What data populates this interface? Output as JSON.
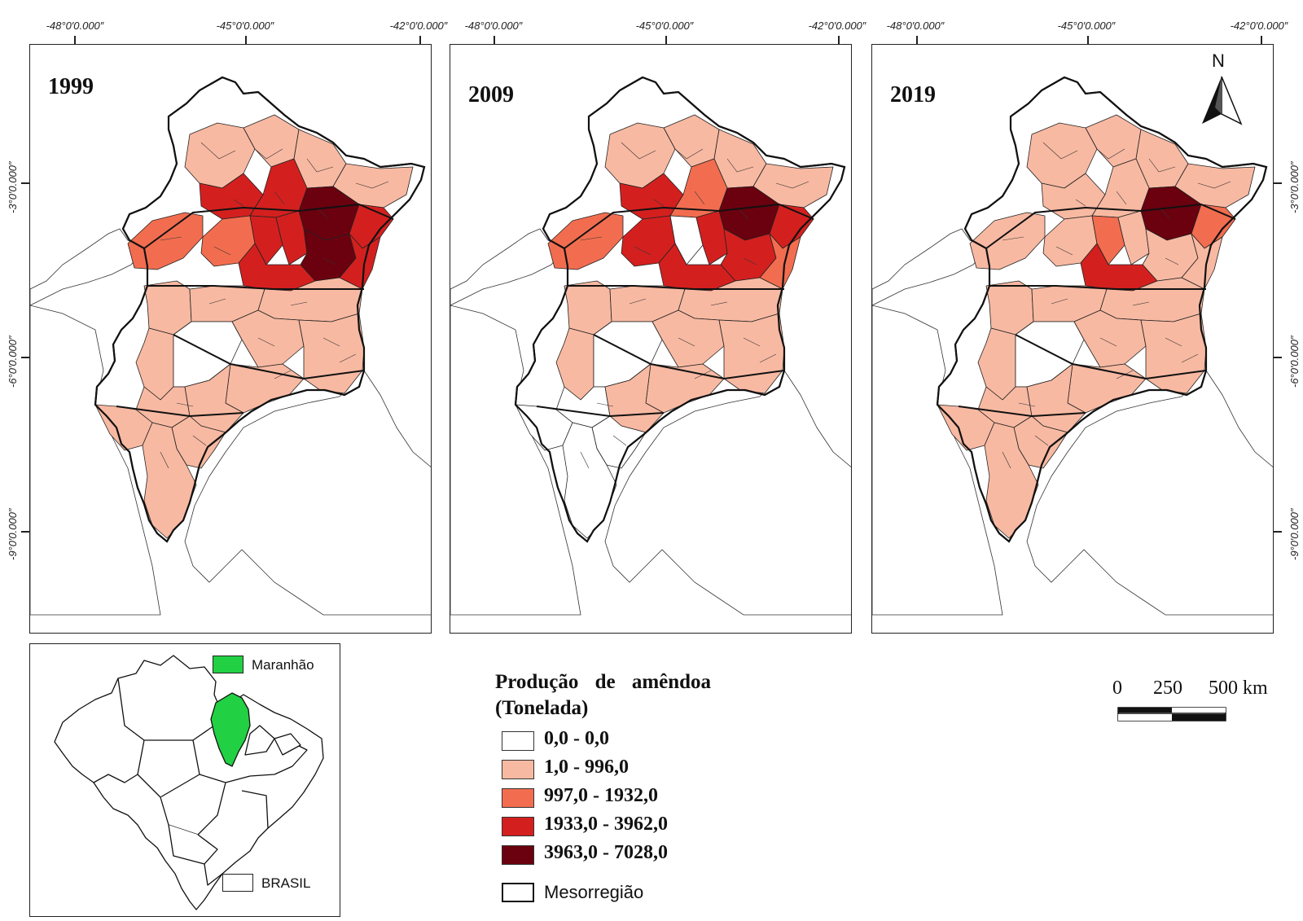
{
  "panels": [
    {
      "year": "1999"
    },
    {
      "year": "2009"
    },
    {
      "year": "2019"
    }
  ],
  "grid_labels": {
    "top": [
      "-48°0′0.000″",
      "-45°0′0.000″",
      "-42°0′0.000″"
    ],
    "left": [
      "-3°0′0.000″",
      "-6°0′0.000″",
      "-9°0′0.000″"
    ],
    "right": [
      "-3°0′0.000″",
      "-6°0′0.000″",
      "-9°0′0.000″"
    ]
  },
  "legend": {
    "title_line1": "Produção de amêndoa",
    "title_line2": "(Tonelada)",
    "classes": [
      {
        "label": "0,0 - 0,0",
        "color": "#ffffff"
      },
      {
        "label": "1,0 - 996,0",
        "color": "#f8b9a2"
      },
      {
        "label": "997,0 - 1932,0",
        "color": "#f26d4f"
      },
      {
        "label": "1933,0 - 3962,0",
        "color": "#d3201f"
      },
      {
        "label": "3963,0 - 7028,0",
        "color": "#6b000f"
      }
    ],
    "boundary_label": "Mesorregião"
  },
  "inset": {
    "highlight_label": "Maranhão",
    "highlight_color": "#22d043",
    "country_label": "BRASIL"
  },
  "scale_bar": {
    "labels": [
      "0",
      "250",
      "500 km"
    ]
  },
  "north_arrow": {
    "label": "N"
  }
}
